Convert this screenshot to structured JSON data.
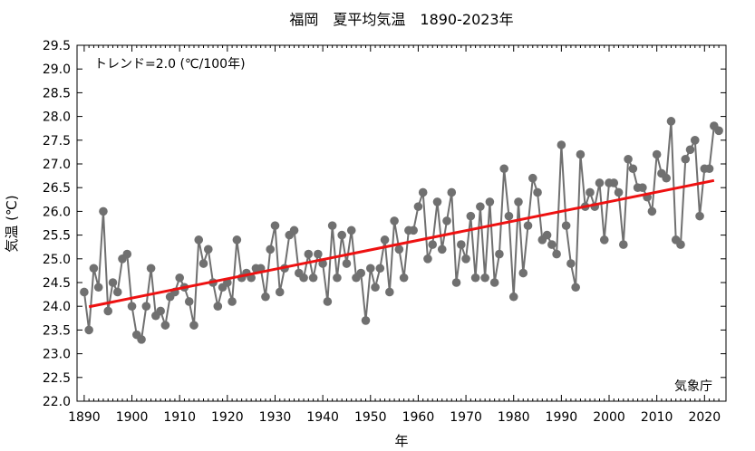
{
  "chart_data": {
    "type": "line",
    "title": "福岡　夏平均気温　1890-2023年",
    "xlabel": "年",
    "ylabel": "気温 (℃)",
    "annotation_trend": "トレンド=2.0 (℃/100年)",
    "source_label": "気象庁",
    "xlim": [
      1888.5,
      2024.5
    ],
    "ylim": [
      22.0,
      29.5
    ],
    "x_ticks": [
      1890,
      1900,
      1910,
      1920,
      1930,
      1940,
      1950,
      1960,
      1970,
      1980,
      1990,
      2000,
      2010,
      2020
    ],
    "y_ticks": [
      22.0,
      22.5,
      23.0,
      23.5,
      24.0,
      24.5,
      25.0,
      25.5,
      26.0,
      26.5,
      27.0,
      27.5,
      28.0,
      28.5,
      29.0,
      29.5
    ],
    "colors": {
      "series": "#707070",
      "trend": "#ee1111"
    },
    "series": [
      {
        "x": [
          1890,
          1891,
          1892,
          1893,
          1894,
          1895,
          1896,
          1897,
          1898,
          1899,
          1900,
          1901,
          1902,
          1903,
          1904,
          1905,
          1906,
          1907,
          1908,
          1909,
          1910,
          1911,
          1912,
          1913,
          1914,
          1915,
          1916,
          1917,
          1918,
          1919,
          1920,
          1921,
          1922,
          1923,
          1924,
          1925,
          1926,
          1927,
          1928,
          1929,
          1930,
          1931,
          1932,
          1933,
          1934,
          1935,
          1936,
          1937,
          1938,
          1939,
          1940,
          1941,
          1942,
          1943,
          1944,
          1945,
          1946,
          1947,
          1948,
          1949,
          1950,
          1951,
          1952,
          1953,
          1954,
          1955,
          1956,
          1957,
          1958,
          1959,
          1960,
          1961,
          1962,
          1963,
          1964,
          1965,
          1966,
          1967,
          1968,
          1969,
          1970,
          1971,
          1972,
          1973,
          1974,
          1975,
          1976,
          1977,
          1978,
          1979,
          1980,
          1981,
          1982,
          1983,
          1984,
          1985,
          1986,
          1987,
          1988,
          1989,
          1990,
          1991,
          1992,
          1993,
          1994,
          1995,
          1996,
          1997,
          1998,
          1999,
          2000,
          2001,
          2002,
          2003,
          2004,
          2005,
          2006,
          2007,
          2008,
          2009,
          2010,
          2011,
          2012,
          2013,
          2014,
          2015,
          2016,
          2017,
          2018,
          2019,
          2020,
          2021,
          2022,
          2023
        ],
        "values": [
          24.3,
          23.5,
          24.8,
          24.4,
          26.0,
          23.9,
          24.5,
          24.3,
          25.0,
          25.1,
          24.0,
          23.4,
          23.3,
          24.0,
          24.8,
          23.8,
          23.9,
          23.6,
          24.2,
          24.3,
          24.6,
          24.4,
          24.1,
          23.6,
          25.4,
          24.9,
          25.2,
          24.5,
          24.0,
          24.4,
          24.5,
          24.1,
          25.4,
          24.6,
          24.7,
          24.6,
          24.8,
          24.8,
          24.2,
          25.2,
          25.7,
          24.3,
          24.8,
          25.5,
          25.6,
          24.7,
          24.6,
          25.1,
          24.6,
          25.1,
          24.9,
          24.1,
          25.7,
          24.6,
          25.5,
          24.9,
          25.6,
          24.6,
          24.7,
          23.7,
          24.8,
          24.4,
          24.8,
          25.4,
          24.3,
          25.8,
          25.2,
          24.6,
          25.6,
          25.6,
          26.1,
          26.4,
          25.0,
          25.3,
          26.2,
          25.2,
          25.8,
          26.4,
          24.5,
          25.3,
          25.0,
          25.9,
          24.6,
          26.1,
          24.6,
          26.2,
          24.5,
          25.1,
          26.9,
          25.9,
          24.2,
          26.2,
          24.7,
          25.7,
          26.7,
          26.4,
          25.4,
          25.5,
          25.3,
          25.1,
          27.4,
          25.7,
          24.9,
          24.4,
          27.2,
          26.1,
          26.4,
          26.1,
          26.6,
          25.4,
          26.6,
          26.6,
          26.4,
          25.3,
          27.1,
          26.9,
          26.5,
          26.5,
          26.3,
          26.0,
          27.2,
          26.8,
          26.7,
          27.9,
          25.4,
          25.3,
          27.1,
          27.3,
          27.5,
          25.9,
          26.9,
          26.9,
          27.8,
          27.7
        ]
      }
    ],
    "trend_line": {
      "x": [
        1891,
        2022
      ],
      "values": [
        23.99,
        26.65
      ]
    }
  }
}
